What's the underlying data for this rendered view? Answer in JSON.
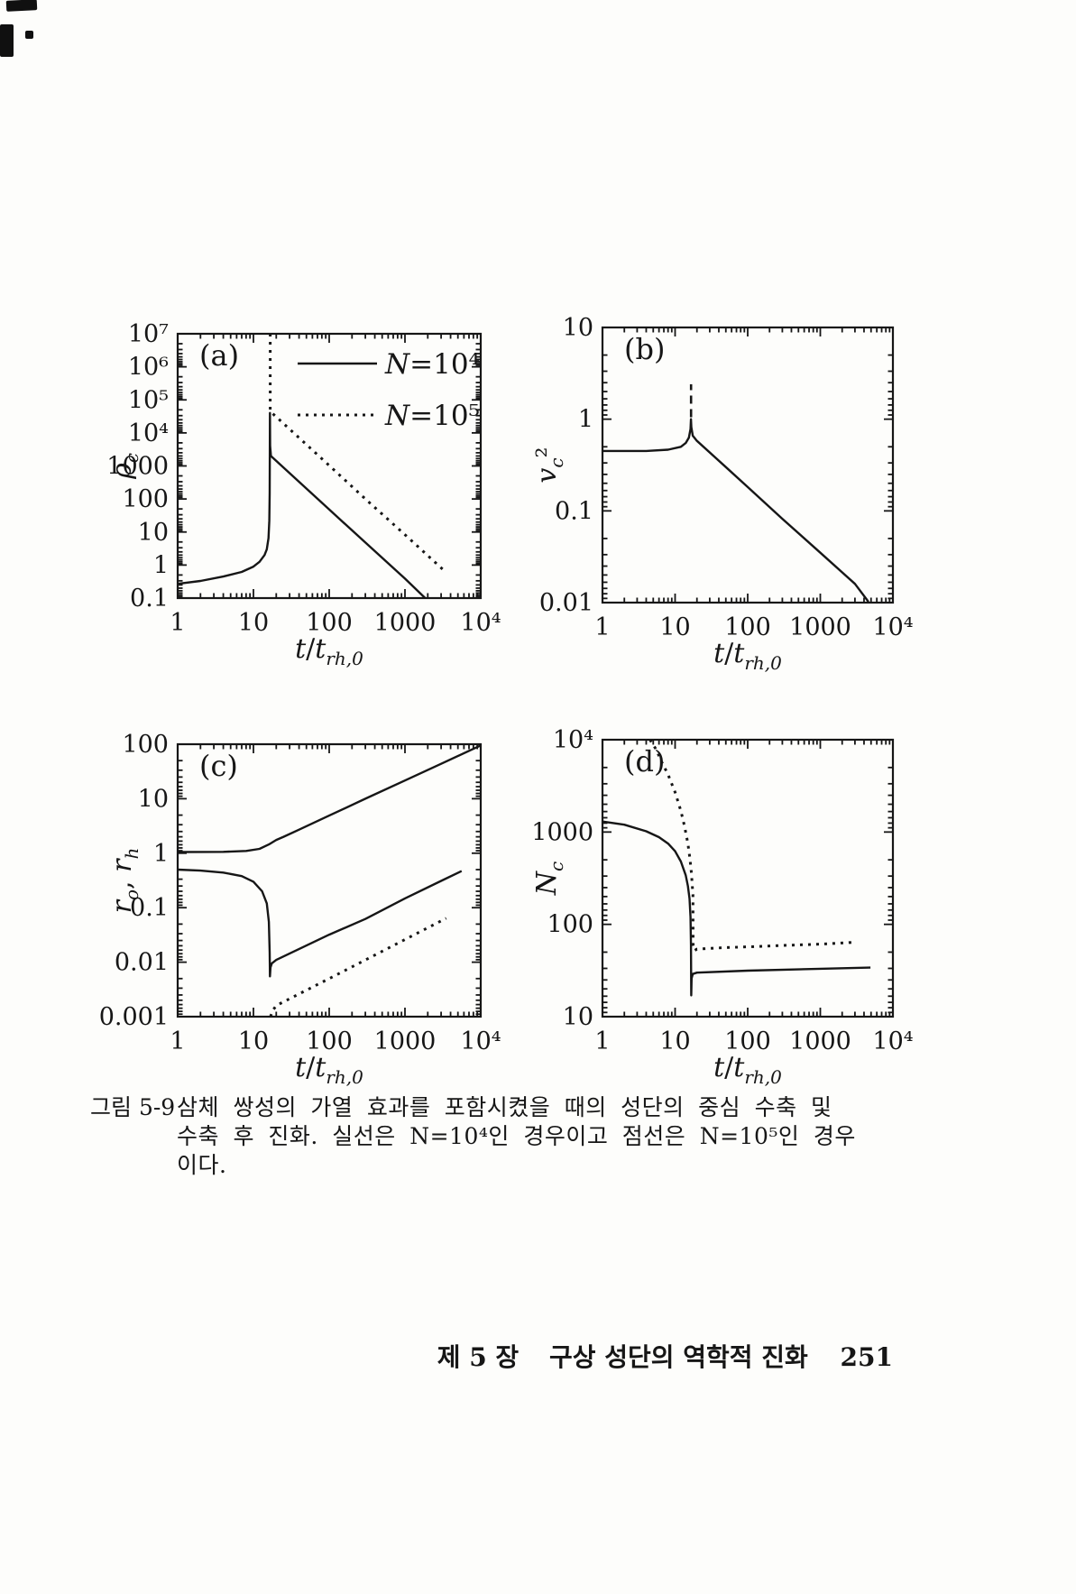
{
  "page": {
    "caption": {
      "label": "그림 5-9",
      "lines": [
        "삼체 쌍성의 가열 효과를 포함시켰을 때의 성단의 중심 수축 및",
        "수축 후 진화. 실선은 N=10⁴인 경우이고 점선은 N=10⁵인 경우",
        "이다."
      ]
    },
    "footer": {
      "chapter": "제 5 장",
      "title": "구상 성단의 역학적 진화",
      "page_number": "251"
    }
  },
  "chart_data": [
    {
      "id": "a",
      "type": "line",
      "panel_label": "(a)",
      "x_scale": "log",
      "y_scale": "log",
      "xlim": [
        1,
        10000
      ],
      "ylim": [
        0.1,
        10000000
      ],
      "xlabel": "t/t_rh,0",
      "ylabel": "rho_c",
      "xlabel_parts": [
        {
          "i": "t"
        },
        {
          "n": "/"
        },
        {
          "i": "t"
        },
        {
          "s": "rh,0"
        }
      ],
      "ylabel_parts": [
        {
          "i": "ρ"
        },
        {
          "s": "c"
        }
      ],
      "x_tick_labels": [
        "1",
        "10",
        "100",
        "1000",
        "10⁴"
      ],
      "y_tick_labels": [
        "10⁷",
        "10⁶",
        "10⁵",
        "10⁴",
        "1000",
        "100",
        "10",
        "1",
        "0.1"
      ],
      "legend": [
        {
          "style": "solid",
          "label": "N=10⁴",
          "label_parts": [
            {
              "i": "N"
            },
            {
              "n": "=10⁴"
            }
          ]
        },
        {
          "style": "dotted",
          "label": "N=10⁵",
          "label_parts": [
            {
              "i": "N"
            },
            {
              "n": "=10⁵"
            }
          ]
        }
      ],
      "series": [
        {
          "name": "rho_c N=10^4 (solid)",
          "style": "solid",
          "points": [
            [
              1,
              0.27
            ],
            [
              2,
              0.33
            ],
            [
              4,
              0.45
            ],
            [
              7,
              0.62
            ],
            [
              10,
              0.9
            ],
            [
              12,
              1.25
            ],
            [
              14,
              2
            ],
            [
              15,
              3
            ],
            [
              15.8,
              6.5
            ],
            [
              16.2,
              22
            ],
            [
              16.4,
              150
            ],
            [
              16.5,
              40000
            ],
            [
              16.62,
              4000
            ],
            [
              17,
              2000
            ],
            [
              30,
              604
            ],
            [
              100,
              48
            ],
            [
              300,
              4.8
            ],
            [
              1000,
              0.39
            ],
            [
              1850,
              0.1
            ]
          ]
        },
        {
          "name": "rho_c N=10^5 (dotted)",
          "style": "dotted",
          "points": [
            [
              16.63,
              10000000
            ],
            [
              16.63,
              45000
            ],
            [
              30,
              13000
            ],
            [
              100,
              1030
            ],
            [
              300,
              100
            ],
            [
              1000,
              8.3
            ],
            [
              3200,
              0.72
            ]
          ]
        }
      ]
    },
    {
      "id": "b",
      "type": "line",
      "panel_label": "(b)",
      "x_scale": "log",
      "y_scale": "log",
      "xlim": [
        1,
        10000
      ],
      "ylim": [
        0.01,
        10
      ],
      "xlabel": "t/t_rh,0",
      "ylabel": "v_c^2",
      "xlabel_parts": [
        {
          "i": "t"
        },
        {
          "n": "/"
        },
        {
          "i": "t"
        },
        {
          "s": "rh,0"
        }
      ],
      "ylabel_parts": [
        {
          "i": "v"
        },
        {
          "s": "c"
        },
        {
          "n": "²"
        }
      ],
      "x_tick_labels": [
        "1",
        "10",
        "100",
        "1000",
        "10⁴"
      ],
      "y_tick_labels": [
        "10",
        "1",
        "0.1",
        "0.01"
      ],
      "series": [
        {
          "name": "v_c^2 N=10^4 (solid)",
          "style": "solid",
          "points": [
            [
              1,
              0.45
            ],
            [
              4,
              0.45
            ],
            [
              8,
              0.465
            ],
            [
              12,
              0.5
            ],
            [
              14,
              0.55
            ],
            [
              15.5,
              0.63
            ],
            [
              16.3,
              0.78
            ],
            [
              16.55,
              1.0
            ],
            [
              16.75,
              0.82
            ],
            [
              17.5,
              0.66
            ],
            [
              20,
              0.58
            ],
            [
              50,
              0.3
            ],
            [
              100,
              0.182
            ],
            [
              300,
              0.082
            ],
            [
              1000,
              0.035
            ],
            [
              3000,
              0.016
            ],
            [
              4600,
              0.0102
            ]
          ]
        },
        {
          "name": "collapse spike (dashed)",
          "style": "dashed",
          "points": [
            [
              16.6,
              1.05
            ],
            [
              16.6,
              2.4
            ]
          ]
        }
      ]
    },
    {
      "id": "c",
      "type": "line",
      "panel_label": "(c)",
      "x_scale": "log",
      "y_scale": "log",
      "xlim": [
        1,
        10000
      ],
      "ylim": [
        0.001,
        100
      ],
      "xlabel": "t/t_rh,0",
      "ylabel": "r_o, r_h",
      "xlabel_parts": [
        {
          "i": "t"
        },
        {
          "n": "/"
        },
        {
          "i": "t"
        },
        {
          "s": "rh,0"
        }
      ],
      "ylabel_parts": [
        {
          "i": "r"
        },
        {
          "s": "o"
        },
        {
          "n": ", "
        },
        {
          "i": "r"
        },
        {
          "s": "h"
        }
      ],
      "x_tick_labels": [
        "1",
        "10",
        "100",
        "1000",
        "10⁴"
      ],
      "y_tick_labels": [
        "100",
        "10",
        "1",
        "0.1",
        "0.01",
        "0.001"
      ],
      "series": [
        {
          "name": "r_h N=10^4 (solid)",
          "style": "solid",
          "points": [
            [
              1,
              1.05
            ],
            [
              4,
              1.06
            ],
            [
              8,
              1.1
            ],
            [
              12,
              1.2
            ],
            [
              16,
              1.45
            ],
            [
              20,
              1.75
            ],
            [
              25,
              2.0
            ],
            [
              40,
              2.7
            ],
            [
              100,
              4.9
            ],
            [
              300,
              10
            ],
            [
              1000,
              21.6
            ],
            [
              3000,
              43.8
            ],
            [
              10000,
              95
            ]
          ]
        },
        {
          "name": "r_o N=10^4 (solid)",
          "style": "solid",
          "points": [
            [
              1,
              0.5
            ],
            [
              2,
              0.48
            ],
            [
              4,
              0.44
            ],
            [
              7,
              0.38
            ],
            [
              10,
              0.3
            ],
            [
              13,
              0.2
            ],
            [
              15,
              0.12
            ],
            [
              16,
              0.055
            ],
            [
              16.4,
              0.015
            ],
            [
              16.5,
              0.0055
            ],
            [
              16.8,
              0.008
            ],
            [
              17.5,
              0.0095
            ],
            [
              20,
              0.011
            ],
            [
              100,
              0.032
            ],
            [
              300,
              0.062
            ],
            [
              1000,
              0.148
            ],
            [
              3000,
              0.31
            ],
            [
              5600,
              0.47
            ]
          ]
        },
        {
          "name": "r_o N=10^5 (dotted)",
          "style": "dotted",
          "points": [
            [
              16.8,
              0.001
            ],
            [
              18,
              0.0013
            ],
            [
              20,
              0.0016
            ],
            [
              100,
              0.005
            ],
            [
              1000,
              0.026
            ],
            [
              3500,
              0.064
            ]
          ]
        }
      ]
    },
    {
      "id": "d",
      "type": "line",
      "panel_label": "(d)",
      "x_scale": "log",
      "y_scale": "log",
      "xlim": [
        1,
        10000
      ],
      "ylim": [
        10,
        10000
      ],
      "xlabel": "t/t_rh,0",
      "ylabel": "N_c",
      "xlabel_parts": [
        {
          "i": "t"
        },
        {
          "n": "/"
        },
        {
          "i": "t"
        },
        {
          "s": "rh,0"
        }
      ],
      "ylabel_parts": [
        {
          "i": "N"
        },
        {
          "s": "c"
        }
      ],
      "x_tick_labels": [
        "1",
        "10",
        "100",
        "1000",
        "10⁴"
      ],
      "y_tick_labels": [
        "10⁴",
        "1000",
        "100",
        "10"
      ],
      "series": [
        {
          "name": "N_c N=10^4 (solid)",
          "style": "solid",
          "points": [
            [
              1,
              1300
            ],
            [
              2,
              1200
            ],
            [
              4,
              1020
            ],
            [
              6,
              880
            ],
            [
              8,
              750
            ],
            [
              10,
              620
            ],
            [
              12,
              480
            ],
            [
              14,
              340
            ],
            [
              15,
              260
            ],
            [
              15.8,
              190
            ],
            [
              16.3,
              120
            ],
            [
              16.55,
              60
            ],
            [
              16.7,
              17
            ],
            [
              16.9,
              26
            ],
            [
              17.5,
              29
            ],
            [
              20,
              30
            ],
            [
              100,
              31.5
            ],
            [
              1000,
              33
            ],
            [
              4900,
              34
            ]
          ]
        },
        {
          "name": "N_c N=10^5 (dotted)",
          "style": "dotted",
          "points": [
            [
              4.5,
              10000
            ],
            [
              5.5,
              7800
            ],
            [
              6.5,
              5800
            ],
            [
              8,
              4200
            ],
            [
              10,
              2700
            ],
            [
              12,
              1700
            ],
            [
              13.5,
              1150
            ],
            [
              15,
              750
            ],
            [
              16,
              520
            ],
            [
              16.8,
              360
            ],
            [
              17.3,
              250
            ],
            [
              17.6,
              210
            ],
            [
              17.7,
              60
            ],
            [
              18.5,
              52
            ],
            [
              20,
              54
            ],
            [
              50,
              56
            ],
            [
              100,
              57
            ],
            [
              300,
              59
            ],
            [
              1000,
              61
            ],
            [
              3000,
              64
            ]
          ]
        }
      ]
    }
  ]
}
